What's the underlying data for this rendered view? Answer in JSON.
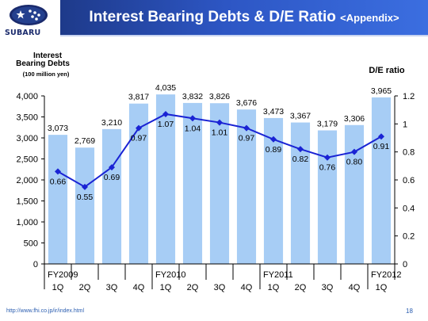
{
  "header": {
    "brand": "SUBARU",
    "title": "Interest Bearing Debts & D/E Ratio",
    "title_suffix": "<Appendix>"
  },
  "footer": {
    "url": "http://www.fhi.co.jp/ir/index.html",
    "page": "18"
  },
  "colors": {
    "bar": "#a7cdf5",
    "line": "#1a23d4",
    "title_bar": "#2d56c4"
  },
  "chart_data": {
    "type": "bar",
    "left_axis_title": [
      "Interest",
      "Bearing Debts"
    ],
    "left_axis_unit": "(100 million yen)",
    "right_axis_title": "D/E ratio",
    "categories": [
      "1Q",
      "2Q",
      "3Q",
      "4Q",
      "1Q",
      "2Q",
      "3Q",
      "4Q",
      "1Q",
      "2Q",
      "3Q",
      "4Q",
      "1Q"
    ],
    "year_labels": [
      {
        "index": 0,
        "label": "FY2009"
      },
      {
        "index": 4,
        "label": "FY2010"
      },
      {
        "index": 8,
        "label": "FY2011"
      },
      {
        "index": 12,
        "label": "FY2012"
      }
    ],
    "bar_values": [
      3073,
      2769,
      3210,
      3817,
      4035,
      3832,
      3826,
      3676,
      3473,
      3367,
      3179,
      3306,
      3965
    ],
    "bar_labels": [
      "3,073",
      "2,769",
      "3,210",
      "3,817",
      "4,035",
      "3,832",
      "3,826",
      "3,676",
      "3,473",
      "3,367",
      "3,179",
      "3,306",
      "3,965"
    ],
    "ratio_values": [
      0.66,
      0.55,
      0.69,
      0.97,
      1.07,
      1.04,
      1.01,
      0.97,
      0.89,
      0.82,
      0.76,
      0.8,
      0.91
    ],
    "ratio_labels": [
      "0.66",
      "0.55",
      "0.69",
      "0.97",
      "1.07",
      "1.04",
      "1.01",
      "0.97",
      "0.89",
      "0.82",
      "0.76",
      "0.80",
      "0.91"
    ],
    "left_ylim": [
      0,
      4000
    ],
    "left_ticks": [
      "0",
      "500",
      "1,000",
      "1,500",
      "2,000",
      "2,500",
      "3,000",
      "3,500",
      "4,000"
    ],
    "right_ylim": [
      0,
      1.2
    ],
    "right_ticks": [
      "0",
      "0.2",
      "0.4",
      "0.6",
      "0.8",
      "1",
      "1.2"
    ],
    "grid": false,
    "legend": "none"
  }
}
